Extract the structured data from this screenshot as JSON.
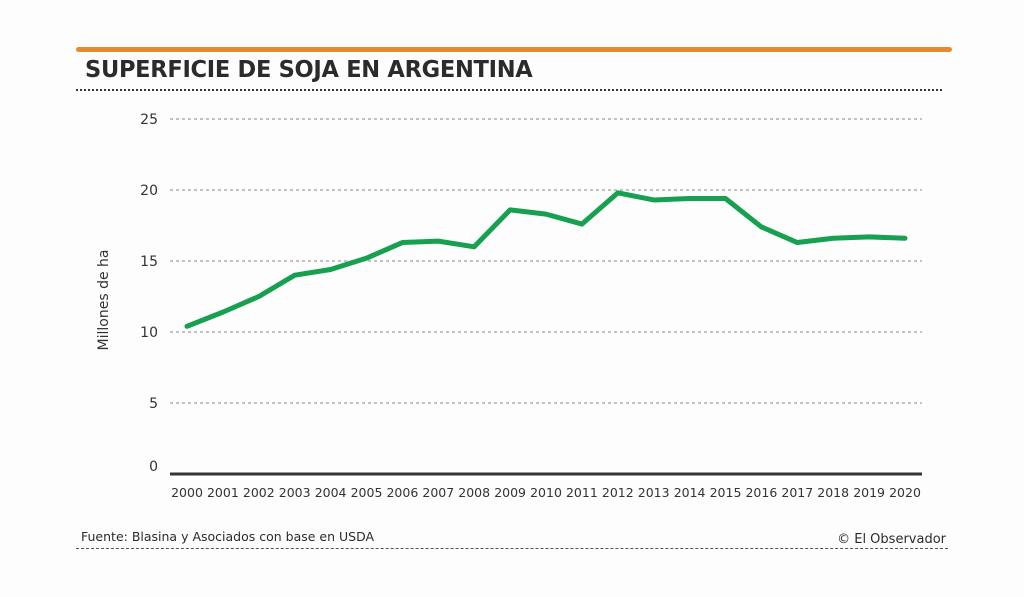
{
  "header": {
    "title": "SUPERFICIE DE SOJA EN ARGENTINA",
    "accent_color": "#e58a32"
  },
  "footer": {
    "source": "Fuente: Blasina y Asociados con base en USDA",
    "credit": "© El Observador"
  },
  "chart_data": {
    "type": "line",
    "title": "SUPERFICIE DE SOJA EN ARGENTINA",
    "xlabel": "",
    "ylabel": "Millones de ha",
    "x": [
      "2000",
      "2001",
      "2002",
      "2003",
      "2004",
      "2005",
      "2006",
      "2007",
      "2008",
      "2009",
      "2010",
      "2011",
      "2012",
      "2013",
      "2014",
      "2015",
      "2016",
      "2017",
      "2018",
      "2019",
      "2020"
    ],
    "series": [
      {
        "name": "Superficie de soja",
        "color": "#16a050",
        "values": [
          10.4,
          11.4,
          12.5,
          14.0,
          14.4,
          15.2,
          16.3,
          16.4,
          16.0,
          18.6,
          18.3,
          17.6,
          19.8,
          19.3,
          19.4,
          19.4,
          17.4,
          16.3,
          16.6,
          16.7,
          16.6
        ]
      }
    ],
    "yticks": [
      0,
      5,
      10,
      15,
      20,
      25
    ],
    "ylim": [
      0,
      25
    ],
    "grid": true,
    "legend": "none"
  }
}
